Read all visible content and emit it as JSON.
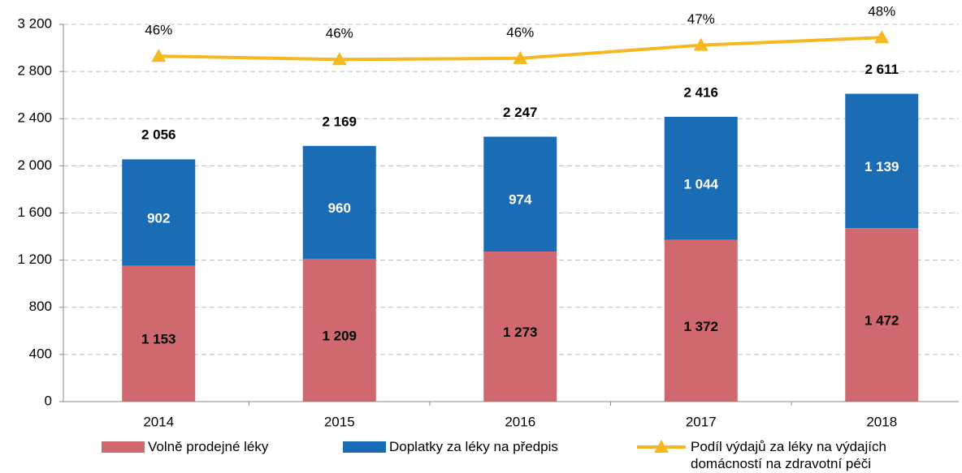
{
  "chart_data": {
    "type": "bar_line",
    "categories": [
      "2014",
      "2015",
      "2016",
      "2017",
      "2018"
    ],
    "ylim": [
      0,
      3200
    ],
    "yticks": [
      0,
      400,
      {
        "value": 800,
        "label": "800"
      },
      {
        "value": 1200,
        "label": "1 200"
      },
      {
        "value": 1600,
        "label": "1 600"
      },
      {
        "value": 2000,
        "label": "2 000"
      },
      {
        "value": 2400,
        "label": "2 400"
      },
      {
        "value": 2800,
        "label": "2 800"
      },
      {
        "value": 3200,
        "label": "3 200"
      }
    ],
    "y2lim": [
      14.3,
      48.7
    ],
    "grid": true,
    "legend": "bottom",
    "series": [
      {
        "name": "Volně prodejné léky",
        "color": "#d0696f",
        "values": [
          1153,
          1209,
          1273,
          1372,
          1472
        ],
        "value_labels": [
          "1 153",
          "1 209",
          "1 273",
          "1 372",
          "1 472"
        ]
      },
      {
        "name": "Doplatky za léky na předpis",
        "color": "#1a6cb5",
        "values": [
          902,
          960,
          974,
          1044,
          1139
        ],
        "value_labels": [
          "902",
          "960",
          "974",
          "1 044",
          "1 139"
        ]
      },
      {
        "name": "Podíl výdajů za léky na výdajích domácností na zdravotní péči",
        "color": "#f5b820",
        "axis": "y2",
        "values": [
          45.8,
          45.5,
          45.6,
          46.8,
          47.5
        ],
        "value_labels": [
          "46%",
          "46%",
          "46%",
          "47%",
          "48%"
        ]
      }
    ],
    "totals": {
      "values": [
        2056,
        2169,
        2247,
        2416,
        2611
      ],
      "value_labels": [
        "2 056",
        "2 169",
        "2 247",
        "2 416",
        "2 611"
      ]
    }
  }
}
